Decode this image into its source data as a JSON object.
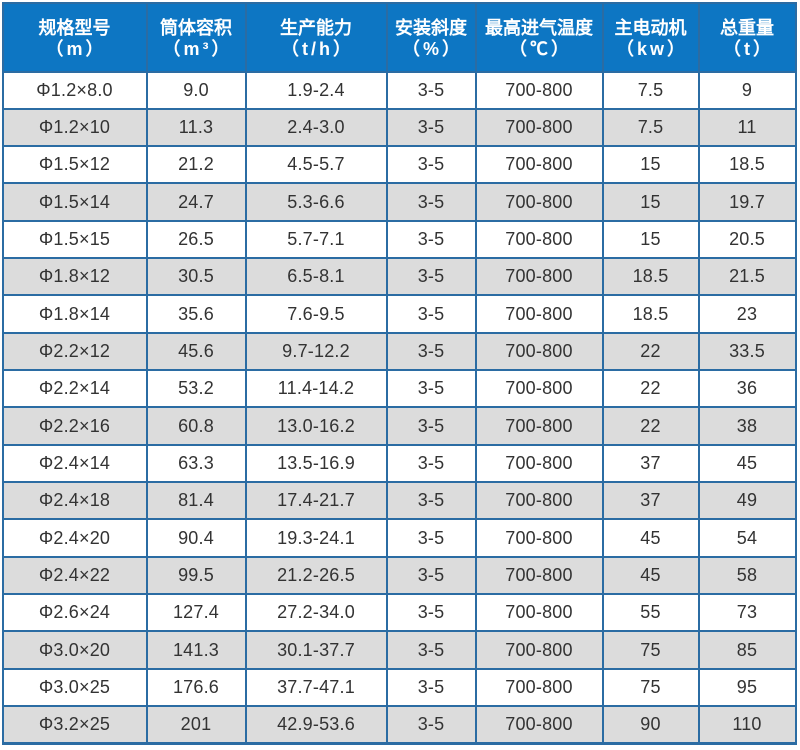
{
  "colors": {
    "header_bg": "#0d76c3",
    "grid_line": "#2b6ca3",
    "row_even_bg": "#ffffff",
    "row_odd_bg": "#dcdcdc",
    "header_text": "#ffffff",
    "body_text": "#333333",
    "page_bg": "#ffffff"
  },
  "chart_data": {
    "type": "table",
    "columns": [
      {
        "id": "spec-model",
        "label": "规格型号",
        "unit": "（m）"
      },
      {
        "id": "cylinder-volume",
        "label": "筒体容积",
        "unit": "（m³）"
      },
      {
        "id": "production-capacity",
        "label": "生产能力",
        "unit": "（t/h）"
      },
      {
        "id": "installation-slope",
        "label": "安装斜度",
        "unit": "（%）"
      },
      {
        "id": "max-inlet-temp",
        "label": "最高进气温度",
        "unit": "（℃）"
      },
      {
        "id": "main-motor",
        "label": "主电动机",
        "unit": "（kw）"
      },
      {
        "id": "total-weight",
        "label": "总重量",
        "unit": "（t）"
      }
    ],
    "rows": [
      [
        "Φ1.2×8.0",
        "9.0",
        "1.9-2.4",
        "3-5",
        "700-800",
        "7.5",
        "9"
      ],
      [
        "Φ1.2×10",
        "11.3",
        "2.4-3.0",
        "3-5",
        "700-800",
        "7.5",
        "11"
      ],
      [
        "Φ1.5×12",
        "21.2",
        "4.5-5.7",
        "3-5",
        "700-800",
        "15",
        "18.5"
      ],
      [
        "Φ1.5×14",
        "24.7",
        "5.3-6.6",
        "3-5",
        "700-800",
        "15",
        "19.7"
      ],
      [
        "Φ1.5×15",
        "26.5",
        "5.7-7.1",
        "3-5",
        "700-800",
        "15",
        "20.5"
      ],
      [
        "Φ1.8×12",
        "30.5",
        "6.5-8.1",
        "3-5",
        "700-800",
        "18.5",
        "21.5"
      ],
      [
        "Φ1.8×14",
        "35.6",
        "7.6-9.5",
        "3-5",
        "700-800",
        "18.5",
        "23"
      ],
      [
        "Φ2.2×12",
        "45.6",
        "9.7-12.2",
        "3-5",
        "700-800",
        "22",
        "33.5"
      ],
      [
        "Φ2.2×14",
        "53.2",
        "11.4-14.2",
        "3-5",
        "700-800",
        "22",
        "36"
      ],
      [
        "Φ2.2×16",
        "60.8",
        "13.0-16.2",
        "3-5",
        "700-800",
        "22",
        "38"
      ],
      [
        "Φ2.4×14",
        "63.3",
        "13.5-16.9",
        "3-5",
        "700-800",
        "37",
        "45"
      ],
      [
        "Φ2.4×18",
        "81.4",
        "17.4-21.7",
        "3-5",
        "700-800",
        "37",
        "49"
      ],
      [
        "Φ2.4×20",
        "90.4",
        "19.3-24.1",
        "3-5",
        "700-800",
        "45",
        "54"
      ],
      [
        "Φ2.4×22",
        "99.5",
        "21.2-26.5",
        "3-5",
        "700-800",
        "45",
        "58"
      ],
      [
        "Φ2.6×24",
        "127.4",
        "27.2-34.0",
        "3-5",
        "700-800",
        "55",
        "73"
      ],
      [
        "Φ3.0×20",
        "141.3",
        "30.1-37.7",
        "3-5",
        "700-800",
        "75",
        "85"
      ],
      [
        "Φ3.0×25",
        "176.6",
        "37.7-47.1",
        "3-5",
        "700-800",
        "75",
        "95"
      ],
      [
        "Φ3.2×25",
        "201",
        "42.9-53.6",
        "3-5",
        "700-800",
        "90",
        "110"
      ]
    ]
  }
}
